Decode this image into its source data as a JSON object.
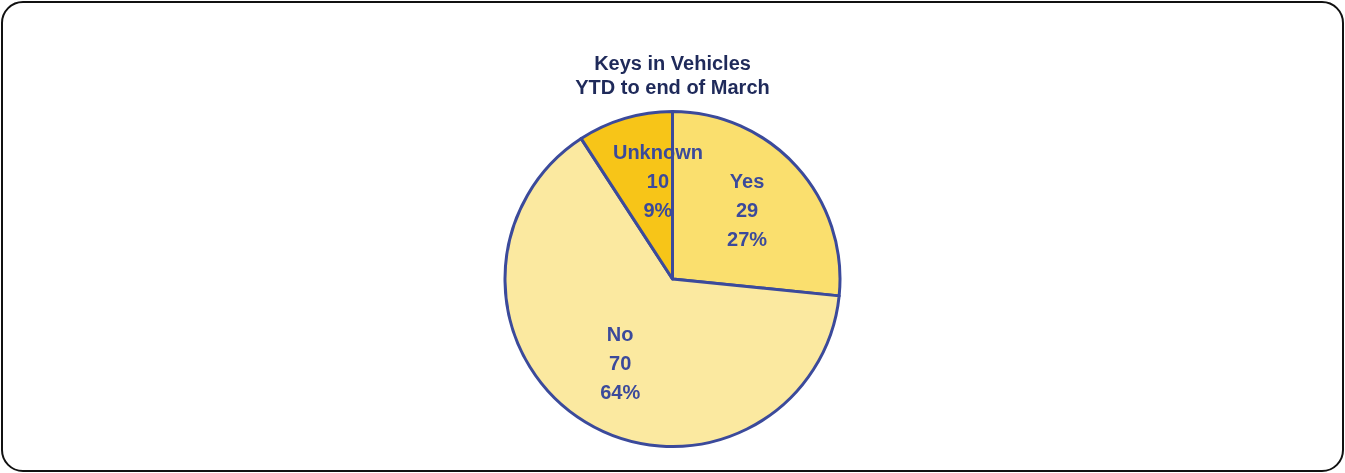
{
  "chart_data": {
    "type": "pie",
    "title": "Keys in Vehicles",
    "subtitle": "YTD to end of March",
    "categories": [
      "Yes",
      "No",
      "Unknown"
    ],
    "values": [
      29,
      70,
      10
    ],
    "colors": [
      "#fadf6e",
      "#fbe9a0",
      "#f7c518"
    ],
    "value_labels": [
      "29\n27%",
      "70\n64%",
      "10\n9%"
    ],
    "legend": false
  }
}
